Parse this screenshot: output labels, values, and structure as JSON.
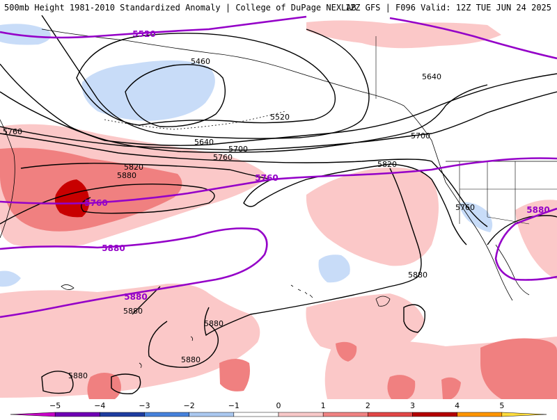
{
  "header": {
    "left_title": "500mb Height 1981-2010 Standardized Anomaly | College of DuPage NEXLAB",
    "right_title": "12Z GFS | F096 Valid: 12Z TUE JUN 24 2025"
  },
  "contour_labels": [
    {
      "text": "5520",
      "highlight": true
    },
    {
      "text": "5460",
      "highlight": false
    },
    {
      "text": "5520",
      "highlight": false
    },
    {
      "text": "5640",
      "highlight": false
    },
    {
      "text": "5760",
      "highlight": false
    },
    {
      "text": "5640",
      "highlight": false
    },
    {
      "text": "5700",
      "highlight": false
    },
    {
      "text": "5760",
      "highlight": false
    },
    {
      "text": "5820",
      "highlight": false
    },
    {
      "text": "5880",
      "highlight": false
    },
    {
      "text": "5760",
      "highlight": true
    },
    {
      "text": "5760",
      "highlight": true
    },
    {
      "text": "5700",
      "highlight": false
    },
    {
      "text": "5820",
      "highlight": false
    },
    {
      "text": "5760",
      "highlight": false
    },
    {
      "text": "5880",
      "highlight": true
    },
    {
      "text": "5880",
      "highlight": true
    },
    {
      "text": "5880",
      "highlight": true
    },
    {
      "text": "5880",
      "highlight": false
    },
    {
      "text": "5880",
      "highlight": false
    },
    {
      "text": "5880",
      "highlight": false
    },
    {
      "text": "5880",
      "highlight": false
    },
    {
      "text": "5880",
      "highlight": false
    }
  ],
  "colorbar": {
    "ticks": [
      "−5",
      "−4",
      "−3",
      "−2",
      "−1",
      "0",
      "1",
      "2",
      "3",
      "4",
      "5"
    ],
    "colors": [
      "#c800c8",
      "#6e00b4",
      "#1e3ca0",
      "#4682dc",
      "#aac8f0",
      "#ffffff",
      "#f8c8c8",
      "#f08282",
      "#e14646",
      "#b40000",
      "#ff9600",
      "#ffdc3c"
    ]
  },
  "colors": {
    "anomaly_neg1": "#c8dcf8",
    "anomaly_pos1": "#fbc8c8",
    "anomaly_pos2": "#f08080",
    "anomaly_pos3": "#c80000",
    "highlight_contour": "#9400c8",
    "contour": "#000000"
  }
}
